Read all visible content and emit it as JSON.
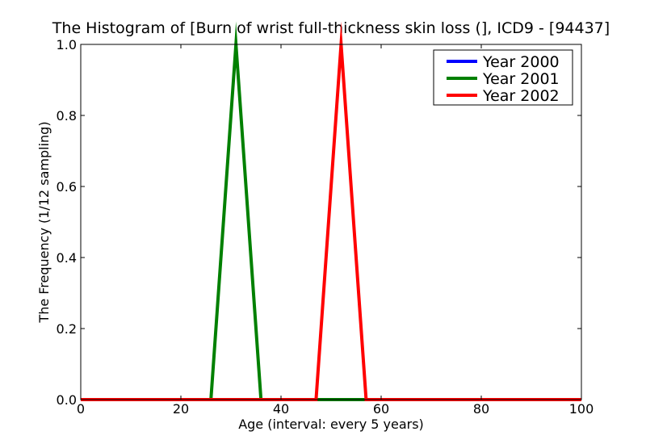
{
  "chart_data": {
    "type": "line",
    "title": "The Histogram of [Burn of wrist full-thickness skin loss (], ICD9 - [94437]",
    "xlabel": "Age (interval: every 5 years)",
    "ylabel": "The Frequency (1/12 sampling)",
    "xlim": [
      0,
      100
    ],
    "ylim": [
      0,
      1.0
    ],
    "x_ticks": [
      "0",
      "20",
      "40",
      "60",
      "80",
      "100"
    ],
    "y_ticks": [
      "0.0",
      "0.2",
      "0.4",
      "0.6",
      "0.8",
      "1.0"
    ],
    "grid": false,
    "legend_position": "top-right",
    "x": [
      0,
      1,
      6,
      11,
      16,
      21,
      26,
      31,
      36,
      41,
      46,
      47,
      52,
      57,
      62,
      67,
      72,
      77,
      82,
      87,
      92,
      97,
      100
    ],
    "series": [
      {
        "name": "Year 2000",
        "color": "#0000ff",
        "values": [
          0,
          0,
          0,
          0,
          0,
          0,
          0,
          0,
          0,
          0,
          0,
          0,
          0,
          0,
          0,
          0,
          0,
          0,
          0,
          0,
          0,
          0,
          0
        ]
      },
      {
        "name": "Year 2001",
        "color": "#008000",
        "values": [
          0,
          0,
          0,
          0,
          0,
          0,
          0,
          1,
          0,
          0,
          0,
          0,
          0,
          0,
          0,
          0,
          0,
          0,
          0,
          0,
          0,
          0,
          0
        ]
      },
      {
        "name": "Year 2002",
        "color": "#ff0000",
        "values": [
          0,
          0,
          0,
          0,
          0,
          0,
          0,
          0,
          0,
          0,
          0,
          0,
          1,
          0,
          0,
          0,
          0,
          0,
          0,
          0,
          0,
          0,
          0
        ]
      }
    ]
  }
}
